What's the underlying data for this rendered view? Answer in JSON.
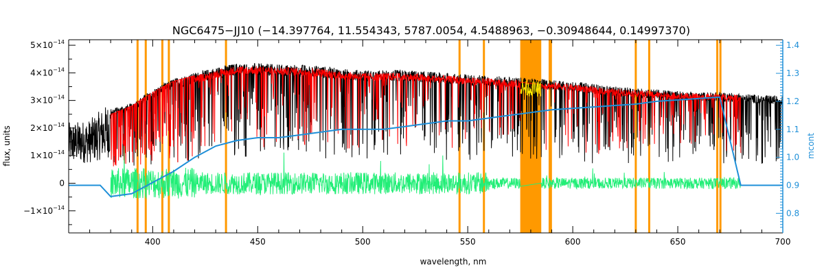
{
  "chart_data": {
    "type": "line",
    "title": "NGC6475−JJ10   (−14.397764, 11.554343, 5787.0054, 4.5488963, −0.30948644, 0.14997370)",
    "xlabel": "wavelength, nm",
    "ylabel": "flux, units",
    "y2label": "mcont",
    "xlim": [
      360,
      700
    ],
    "ylim": [
      -1.8e-14,
      5.2e-14
    ],
    "y2lim": [
      0.73,
      1.42
    ],
    "x_ticks": [
      {
        "value": 400,
        "label": "400"
      },
      {
        "value": 450,
        "label": "450"
      },
      {
        "value": 500,
        "label": "500"
      },
      {
        "value": 550,
        "label": "550"
      },
      {
        "value": 600,
        "label": "600"
      },
      {
        "value": 650,
        "label": "650"
      },
      {
        "value": 700,
        "label": "700"
      }
    ],
    "y_ticks": [
      {
        "value": -1e-14,
        "mant": "−1×10",
        "exp": "−14"
      },
      {
        "value": 0,
        "mant": "0",
        "exp": ""
      },
      {
        "value": 1e-14,
        "mant": "1×10",
        "exp": "−14"
      },
      {
        "value": 2e-14,
        "mant": "2×10",
        "exp": "−14"
      },
      {
        "value": 3e-14,
        "mant": "3×10",
        "exp": "−14"
      },
      {
        "value": 4e-14,
        "mant": "4×10",
        "exp": "−14"
      },
      {
        "value": 5e-14,
        "mant": "5×10",
        "exp": "−14"
      }
    ],
    "y2_ticks": [
      {
        "value": 0.8,
        "label": "0.8"
      },
      {
        "value": 0.9,
        "label": "0.9"
      },
      {
        "value": 1.0,
        "label": "1.0"
      },
      {
        "value": 1.1,
        "label": "1.1"
      },
      {
        "value": 1.2,
        "label": "1.2"
      },
      {
        "value": 1.3,
        "label": "1.3"
      },
      {
        "value": 1.4,
        "label": "1.4"
      }
    ],
    "masked_lines_nm": [
      392.8,
      396.7,
      404.6,
      407.7,
      434.9,
      546.1,
      557.7,
      589.0,
      589.6,
      630.0,
      636.4,
      668.8,
      670.3
    ],
    "masked_band_nm": [
      575,
      585
    ],
    "series": [
      {
        "role": "observed",
        "color": "#000000",
        "x": [
          360,
          370,
          380,
          390,
          400,
          410,
          420,
          430,
          440,
          450,
          460,
          470,
          480,
          490,
          500,
          510,
          520,
          530,
          540,
          550,
          560,
          570,
          580,
          590,
          600,
          610,
          620,
          630,
          640,
          650,
          660,
          670,
          680,
          690,
          700
        ],
        "y": [
          2e-14,
          2.1e-14,
          2.7e-14,
          2.9e-14,
          3.4e-14,
          3.8e-14,
          4e-14,
          4.2e-14,
          4.35e-14,
          4.35e-14,
          4.3e-14,
          4.3e-14,
          4.25e-14,
          4.15e-14,
          4.1e-14,
          4.1e-14,
          4.1e-14,
          4.05e-14,
          4e-14,
          3.95e-14,
          3.9e-14,
          3.85e-14,
          3.8e-14,
          3.75e-14,
          3.7e-14,
          3.6e-14,
          3.5e-14,
          3.45e-14,
          3.4e-14,
          3.35e-14,
          3.3e-14,
          3.3e-14,
          3.25e-14,
          3.2e-14,
          3.15e-14
        ]
      },
      {
        "role": "model",
        "color": "#ff0000",
        "x": [
          380,
          390,
          400,
          410,
          420,
          430,
          440,
          450,
          460,
          470,
          480,
          490,
          500,
          510,
          520,
          530,
          540,
          550,
          560,
          570,
          580,
          590,
          600,
          610,
          620,
          630,
          640,
          650,
          660,
          670,
          680
        ],
        "y": [
          2.5e-14,
          2.8e-14,
          3.3e-14,
          3.7e-14,
          3.9e-14,
          4.1e-14,
          4.25e-14,
          4.25e-14,
          4.2e-14,
          4.2e-14,
          4.15e-14,
          4.05e-14,
          4e-14,
          4e-14,
          4e-14,
          3.95e-14,
          3.9e-14,
          3.85e-14,
          3.8e-14,
          3.75e-14,
          3.7e-14,
          3.65e-14,
          3.6e-14,
          3.5e-14,
          3.42e-14,
          3.38e-14,
          3.32e-14,
          3.28e-14,
          3.25e-14,
          3.25e-14,
          3.2e-14
        ]
      },
      {
        "role": "residual",
        "color": "#22ee77",
        "x_range": [
          380,
          680
        ],
        "y": 0,
        "amplitude": 4e-15
      },
      {
        "role": "continuum",
        "axis": "right",
        "color": "#1e8fd8",
        "x": [
          360,
          375,
          380,
          390,
          400,
          410,
          420,
          430,
          440,
          450,
          460,
          470,
          480,
          490,
          500,
          510,
          520,
          530,
          540,
          550,
          560,
          570,
          580,
          590,
          600,
          610,
          620,
          630,
          640,
          650,
          660,
          670,
          680,
          690,
          700
        ],
        "y": [
          0.9,
          0.9,
          0.86,
          0.87,
          0.91,
          0.95,
          1.0,
          1.04,
          1.06,
          1.07,
          1.07,
          1.08,
          1.09,
          1.1,
          1.1,
          1.1,
          1.11,
          1.12,
          1.13,
          1.13,
          1.14,
          1.15,
          1.16,
          1.17,
          1.175,
          1.18,
          1.185,
          1.19,
          1.2,
          1.205,
          1.21,
          1.215,
          0.9,
          0.9,
          0.9
        ]
      }
    ],
    "colors": {
      "mask": "#ff9900",
      "left_axis": "#000000",
      "right_axis": "#1e8fd8",
      "gap_fill": "#ffee00"
    }
  }
}
